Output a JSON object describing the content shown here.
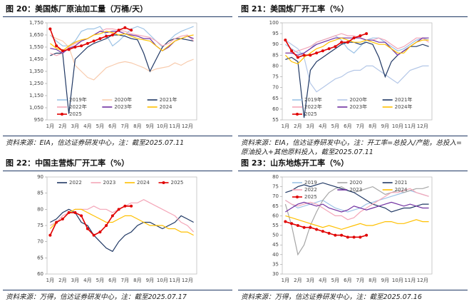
{
  "chart_data": [
    {
      "type": "line",
      "title": "图 20：美国炼厂原油加工量（万桶/天）",
      "note": "资料来源：EIA，信达证券研发中心，注：截至2025.07.11",
      "categories": [
        "1月",
        null,
        "2月",
        null,
        "3月",
        null,
        "4月",
        null,
        "5月",
        null,
        "6月",
        null,
        "7月",
        null,
        "8月",
        null,
        "9月",
        null,
        "10月",
        null,
        "11月",
        null,
        "12月",
        null
      ],
      "ylim": [
        950,
        1750
      ],
      "yticks": [
        950,
        {
          "value": 1050,
          "label": "1,050"
        },
        {
          "value": 1150,
          "label": "1,150"
        },
        {
          "value": 1250,
          "label": "1,250"
        },
        {
          "value": 1350,
          "label": "1,350"
        },
        {
          "value": 1450,
          "label": "1,450"
        },
        {
          "value": 1550,
          "label": "1,550"
        },
        {
          "value": 1650,
          "label": "1,650"
        },
        {
          "value": 1750,
          "label": "1,750"
        }
      ],
      "legend": "bottom",
      "series": [
        {
          "name": "2019年",
          "color": "#9dc3e6",
          "values": [
            1650,
            1600,
            1560,
            1560,
            1600,
            1680,
            1700,
            1700,
            1720,
            1650,
            1560,
            1600,
            1650,
            1700,
            1720,
            1700,
            1650,
            1600,
            1550,
            1600,
            1650,
            1680,
            1700,
            1720
          ]
        },
        {
          "name": "2020年",
          "color": "#f8cbad",
          "values": [
            1650,
            1620,
            1600,
            1550,
            1400,
            1350,
            1300,
            1280,
            1330,
            1380,
            1400,
            1420,
            1430,
            1420,
            1400,
            1380,
            1350,
            1370,
            1380,
            1390,
            1420,
            1400,
            1430,
            1450
          ]
        },
        {
          "name": "2021年",
          "color": "#203864",
          "values": [
            1480,
            1500,
            1500,
            1000,
            1450,
            1500,
            1550,
            1580,
            1600,
            1620,
            1650,
            1650,
            1640,
            1620,
            1610,
            1500,
            1350,
            1450,
            1550,
            1600,
            1620,
            1620,
            1610,
            1600
          ]
        },
        {
          "name": "2022年",
          "color": "#f4a6b8",
          "values": [
            1500,
            1480,
            1500,
            1550,
            1580,
            1600,
            1620,
            1650,
            1680,
            1700,
            1700,
            1690,
            1680,
            1660,
            1650,
            1640,
            1630,
            1600,
            1560,
            1580,
            1620,
            1640,
            1650,
            1600
          ]
        },
        {
          "name": "2023年",
          "color": "#7030a0",
          "values": [
            1540,
            1530,
            1500,
            1540,
            1560,
            1600,
            1620,
            1650,
            1680,
            1670,
            1680,
            1680,
            1660,
            1650,
            1640,
            1620,
            1620,
            1560,
            1520,
            1550,
            1600,
            1620,
            1640,
            1620
          ]
        },
        {
          "name": "2024",
          "color": "#ffc000",
          "values": [
            1580,
            1540,
            1520,
            1560,
            1590,
            1610,
            1620,
            1650,
            1660,
            1680,
            1670,
            1650,
            1660,
            1640,
            1620,
            1610,
            1600,
            1560,
            1520,
            1560,
            1600,
            1620,
            1640,
            1650
          ]
        },
        {
          "name": "2025",
          "color": "#e00000",
          "marker": "circle",
          "values": [
            1700,
            1560,
            1520,
            1530,
            1550,
            1560,
            1580,
            1600,
            1620,
            1640,
            1650,
            1690,
            1710,
            1690,
            null,
            null,
            null,
            null,
            null,
            null,
            null,
            null,
            null,
            null
          ]
        }
      ]
    },
    {
      "type": "line",
      "title": "图 21：美国炼厂开工率（%）",
      "note": "资料来源：EIA，信达证券研发中心，注：开工率=总投入/产能，总投入=原油投入+其他原料投入，截至2025.07.11",
      "categories": [
        "1月",
        null,
        "2月",
        null,
        "3月",
        null,
        "4月",
        null,
        "5月",
        null,
        "6月",
        null,
        "7月",
        null,
        "8月",
        null,
        "9月",
        null,
        "10月",
        null,
        "11月",
        null,
        "12月",
        null
      ],
      "ylim": [
        55,
        100
      ],
      "yticks": [
        55,
        60,
        65,
        70,
        75,
        80,
        85,
        90,
        95,
        100
      ],
      "legend": "bottom",
      "series": [
        {
          "name": "2019年",
          "color": "#9dc3e6",
          "values": [
            90,
            88,
            86,
            86,
            88,
            91,
            92,
            93,
            94,
            92,
            88,
            86,
            89,
            92,
            93,
            93,
            91,
            89,
            87,
            88,
            90,
            92,
            93,
            92
          ]
        },
        {
          "name": "2020年",
          "color": "#b4c7e7",
          "values": [
            92,
            90,
            88,
            84,
            72,
            68,
            70,
            72,
            74,
            75,
            77,
            78,
            78,
            80,
            80,
            78,
            76,
            74,
            72,
            75,
            78,
            79,
            80,
            80
          ]
        },
        {
          "name": "2021年",
          "color": "#203864",
          "values": [
            83,
            84,
            82,
            56,
            78,
            82,
            84,
            86,
            88,
            90,
            91,
            91,
            90,
            91,
            90,
            84,
            75,
            82,
            85,
            87,
            89,
            89,
            90,
            89
          ]
        },
        {
          "name": "2022年",
          "color": "#f4a6b8",
          "values": [
            86,
            86,
            87,
            88,
            89,
            91,
            92,
            93,
            94,
            95,
            94,
            94,
            93,
            92,
            92,
            93,
            92,
            90,
            88,
            89,
            91,
            93,
            93,
            91
          ]
        },
        {
          "name": "2023年",
          "color": "#7030a0",
          "values": [
            86,
            86,
            85,
            86,
            88,
            90,
            91,
            92,
            93,
            93,
            93,
            93,
            93,
            92,
            92,
            91,
            91,
            88,
            85,
            87,
            89,
            91,
            93,
            93
          ]
        },
        {
          "name": "2024年",
          "color": "#ffc000",
          "values": [
            85,
            82,
            81,
            84,
            86,
            88,
            89,
            91,
            92,
            93,
            92,
            91,
            91,
            92,
            91,
            90,
            90,
            88,
            86,
            86,
            89,
            91,
            92,
            92
          ]
        },
        {
          "name": "2025",
          "color": "#e00000",
          "marker": "circle",
          "values": [
            92,
            87,
            84,
            85,
            85,
            86,
            87,
            88,
            89,
            91,
            91,
            93,
            94,
            95,
            null,
            null,
            null,
            null,
            null,
            null,
            null,
            null,
            null,
            null
          ]
        }
      ]
    },
    {
      "type": "line",
      "title": "图 22：中国主营炼厂开工率（%）",
      "note": "资料来源：万得，信达证券研发中心，注：截至2025.07.17",
      "categories": [
        "1月",
        null,
        "2月",
        null,
        "3月",
        null,
        "4月",
        null,
        "5月",
        null,
        "6月",
        null,
        "7月",
        null,
        "8月",
        null,
        "9月",
        null,
        "10月",
        null,
        "11月",
        null,
        "12月",
        null
      ],
      "ylim": [
        60,
        90
      ],
      "yticks": [
        60,
        65,
        70,
        75,
        80,
        85,
        90
      ],
      "legend": "top",
      "series": [
        {
          "name": "2022",
          "color": "#203864",
          "values": [
            76,
            77,
            79,
            80,
            79,
            76,
            75,
            72,
            70,
            68,
            67,
            70,
            72,
            73,
            75,
            76,
            76,
            75,
            74,
            75,
            76,
            78,
            77,
            76
          ]
        },
        {
          "name": "2023",
          "color": "#f4a6b8",
          "values": [
            75,
            76,
            78,
            79,
            80,
            80,
            80,
            81,
            80,
            80,
            79,
            80,
            81,
            82,
            82,
            83,
            82,
            81,
            80,
            79,
            78,
            76,
            75,
            73
          ]
        },
        {
          "name": "2024",
          "color": "#ffc000",
          "values": [
            74,
            76,
            77,
            79,
            80,
            80,
            79,
            78,
            77,
            76,
            76,
            77,
            78,
            78,
            77,
            76,
            75,
            75,
            75,
            74,
            74,
            73,
            73,
            72
          ]
        },
        {
          "name": "2025",
          "color": "#e00000",
          "marker": "circle",
          "values": [
            72,
            76,
            77,
            79,
            79,
            78,
            74,
            72,
            73,
            75,
            78,
            80,
            81,
            81,
            null,
            null,
            null,
            null,
            null,
            null,
            null,
            null,
            null,
            null
          ]
        }
      ]
    },
    {
      "type": "line",
      "title": "图 23：山东地炼开工率（%）",
      "note": "资料来源：万得，信达证券研发中心，注：截至2025.07.16",
      "categories": [
        "1月",
        null,
        "2月",
        null,
        "3月",
        null,
        "4月",
        null,
        "5月",
        null,
        "6月",
        null,
        "7月",
        null,
        "8月",
        null,
        "9月",
        null,
        "10月",
        null,
        "11月",
        null,
        "12月",
        null
      ],
      "ylim": [
        30,
        80
      ],
      "yticks": [
        30,
        35,
        40,
        45,
        50,
        55,
        60,
        65,
        70,
        75,
        80
      ],
      "legend": "top",
      "series": [
        {
          "name": "2019",
          "color": "#9dc3e6",
          "values": [
            68,
            66,
            64,
            65,
            66,
            67,
            68,
            66,
            64,
            63,
            62,
            63,
            64,
            66,
            67,
            68,
            69,
            70,
            71,
            72,
            73,
            72,
            71,
            70
          ]
        },
        {
          "name": "2020",
          "color": "#a6a6a6",
          "values": [
            66,
            55,
            40,
            45,
            55,
            62,
            68,
            72,
            74,
            75,
            73,
            72,
            73,
            74,
            75,
            73,
            71,
            72,
            73,
            72,
            73,
            74,
            74,
            75
          ]
        },
        {
          "name": "2021",
          "color": "#203864",
          "values": [
            72,
            73,
            75,
            76,
            75,
            76,
            77,
            76,
            75,
            74,
            73,
            72,
            70,
            68,
            66,
            65,
            64,
            62,
            63,
            64,
            64,
            65,
            66,
            66
          ]
        },
        {
          "name": "2022",
          "color": "#f4a6b8",
          "values": [
            68,
            66,
            65,
            66,
            67,
            66,
            64,
            62,
            60,
            60,
            58,
            59,
            62,
            64,
            66,
            68,
            70,
            72,
            72,
            73,
            74,
            72,
            71,
            70
          ]
        },
        {
          "name": "2023",
          "color": "#7030a0",
          "values": [
            62,
            64,
            66,
            67,
            66,
            65,
            66,
            64,
            63,
            62,
            63,
            65,
            64,
            63,
            64,
            65,
            66,
            67,
            66,
            65,
            66,
            65,
            64,
            64
          ]
        },
        {
          "name": "2024",
          "color": "#ffc000",
          "values": [
            60,
            59,
            58,
            57,
            56,
            55,
            54,
            55,
            54,
            53,
            54,
            55,
            56,
            55,
            55,
            56,
            57,
            57,
            56,
            56,
            57,
            58,
            57,
            57
          ]
        },
        {
          "name": "2025",
          "color": "#e00000",
          "marker": "circle",
          "values": [
            57,
            56,
            55,
            54,
            54,
            53,
            52,
            51,
            50,
            50,
            49,
            49,
            49,
            50,
            null,
            null,
            null,
            null,
            null,
            null,
            null,
            null,
            null,
            null
          ]
        }
      ]
    }
  ]
}
